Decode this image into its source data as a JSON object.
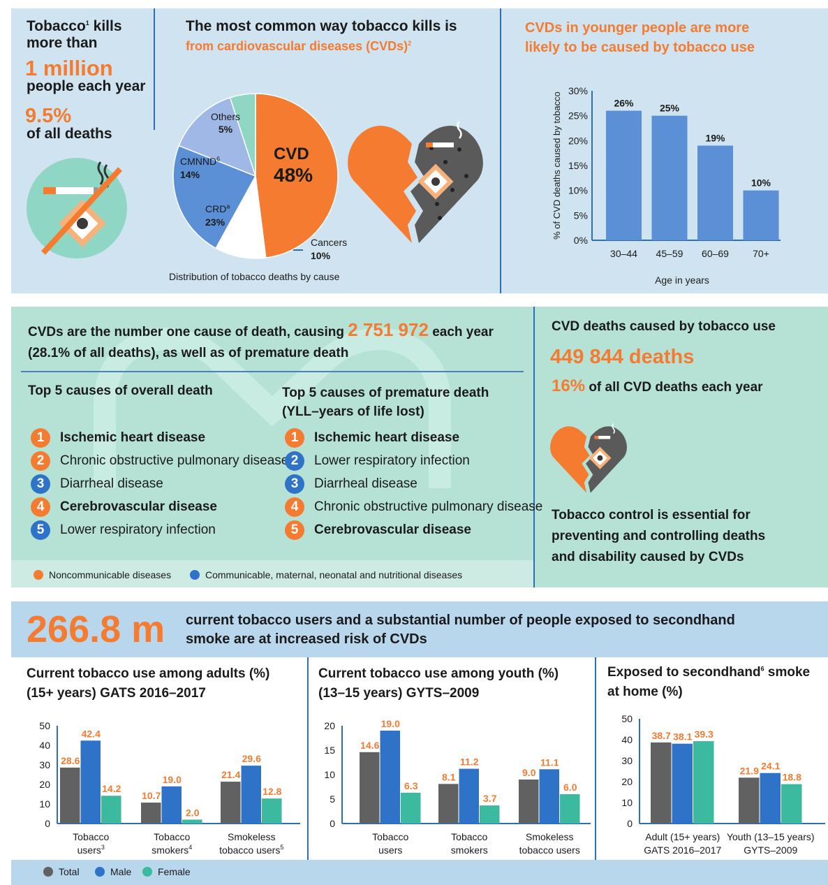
{
  "colors": {
    "orange": "#f47b2f",
    "blue": "#2f73c8",
    "barBlue": "#5b8fd6",
    "grey": "#616161",
    "teal": "#3bbaa0"
  },
  "sec1": {
    "kills_line1": "Tobacco",
    "kills_sup": "1",
    "kills_line1b": " kills",
    "kills_line2": "more than",
    "kills_big": "1 million",
    "kills_line3": "people each year",
    "pct": "9.5%",
    "pct_label": "of all deaths",
    "common_title": "The most common way tobacco kills is",
    "common_sub": "from cardiovascular diseases (CVDs)",
    "common_sub_sup": "2",
    "pie_caption": "Distribution of tobacco deaths by cause",
    "young_title1": "CVDs in younger people are more",
    "young_title2": "likely to be caused by tobacco use"
  },
  "pie": {
    "slices": [
      {
        "name": "CVD",
        "value": 48,
        "label": "48%",
        "color": "#f47b2f"
      },
      {
        "name": "Cancers",
        "value": 10,
        "label": "10%",
        "color": "#ffffff"
      },
      {
        "name": "CRD",
        "sup": "a",
        "value": 23,
        "label": "23%",
        "color": "#5b8fd6"
      },
      {
        "name": "CMNND",
        "sup": "6",
        "value": 14,
        "label": "14%",
        "color": "#9fb8e6"
      },
      {
        "name": "Others",
        "value": 5,
        "label": "5%",
        "color": "#8fd6c4"
      }
    ]
  },
  "sec2": {
    "headline1": "CVDs are the number one cause of death, causing",
    "headline_num": "2 751 972",
    "headline2": "each year",
    "headline3": "(28.1% of all deaths), as well as of premature death",
    "overall_title": "Top 5 causes of overall death",
    "premature_title1": "Top 5 causes of premature death",
    "premature_title2": "(YLL–years of life lost)",
    "overall": [
      {
        "rank": "1",
        "label": "Ischemic heart disease",
        "type": "ncd",
        "bold": true
      },
      {
        "rank": "2",
        "label": "Chronic obstructive pulmonary disease",
        "type": "ncd",
        "bold": false
      },
      {
        "rank": "3",
        "label": "Diarrheal disease",
        "type": "cd",
        "bold": false
      },
      {
        "rank": "4",
        "label": "Cerebrovascular disease",
        "type": "ncd",
        "bold": true
      },
      {
        "rank": "5",
        "label": "Lower respiratory infection",
        "type": "cd",
        "bold": false
      }
    ],
    "premature": [
      {
        "rank": "1",
        "label": "Ischemic heart disease",
        "type": "ncd",
        "bold": true
      },
      {
        "rank": "2",
        "label": "Lower respiratory infection",
        "type": "cd",
        "bold": false
      },
      {
        "rank": "3",
        "label": "Diarrheal disease",
        "type": "cd",
        "bold": false
      },
      {
        "rank": "4",
        "label": "Chronic obstructive pulmonary disease",
        "type": "ncd",
        "bold": false
      },
      {
        "rank": "5",
        "label": "Cerebrovascular disease",
        "type": "ncd",
        "bold": true
      }
    ],
    "legend_ncd": "Noncommunicable diseases",
    "legend_cd": "Communicable, maternal, neonatal and nutritional diseases",
    "right_title": "CVD deaths caused by tobacco use",
    "right_deaths": "449 844 deaths",
    "right_pct": "16%",
    "right_pct_label": "of all CVD deaths each year",
    "control1": "Tobacco control is essential for",
    "control2": "preventing and controlling deaths",
    "control3": "and disability caused by CVDs"
  },
  "sec3": {
    "big": "266.8 m",
    "head1": "current tobacco users and a substantial number of people exposed to secondhand",
    "head2": "smoke are at increased risk of CVDs",
    "c1_title1": "Current tobacco use among adults (%)",
    "c1_title2": "(15+ years) GATS 2016–2017",
    "c2_title1": "Current tobacco use among youth (%)",
    "c2_title2": "(13–15 years) GYTS–2009",
    "c3_title1": "Exposed to secondhand",
    "c3_title_sup": "6",
    "c3_title1b": " smoke",
    "c3_title2": "at home (%)",
    "legend_total": "Total",
    "legend_male": "Male",
    "legend_female": "Female"
  },
  "chart_data": [
    {
      "type": "bar",
      "xlabel": "Age in years",
      "ylabel": "% of CVD deaths caused by tobacco",
      "categories": [
        "30–44",
        "45–59",
        "60–69",
        "70+"
      ],
      "values": [
        26,
        25,
        19,
        10
      ],
      "value_labels": [
        "26%",
        "25%",
        "19%",
        "10%"
      ],
      "ylim": [
        0,
        30
      ],
      "yticks": [
        "0%",
        "5%",
        "10%",
        "15%",
        "20%",
        "25%",
        "30%"
      ]
    },
    {
      "type": "bar",
      "title": "Current tobacco use among adults (%) (15+ years) GATS 2016–2017",
      "categories": [
        [
          "Tobacco",
          "users",
          "3"
        ],
        [
          "Tobacco",
          "smokers",
          "4"
        ],
        [
          "Smokeless",
          "tobacco users",
          "5"
        ]
      ],
      "series": [
        {
          "name": "Total",
          "values": [
            28.6,
            10.7,
            21.4
          ]
        },
        {
          "name": "Male",
          "values": [
            42.4,
            19.0,
            29.6
          ]
        },
        {
          "name": "Female",
          "values": [
            14.2,
            2.0,
            12.8
          ]
        }
      ],
      "ylim": [
        0,
        50
      ],
      "yticks": [
        "0",
        "10",
        "20",
        "30",
        "40",
        "50"
      ]
    },
    {
      "type": "bar",
      "title": "Current tobacco use among youth (%) (13–15 years) GYTS–2009",
      "categories": [
        [
          "Tobacco",
          "users",
          ""
        ],
        [
          "Tobacco",
          "smokers",
          ""
        ],
        [
          "Smokeless",
          "tobacco users",
          ""
        ]
      ],
      "series": [
        {
          "name": "Total",
          "values": [
            14.6,
            8.1,
            9.0
          ]
        },
        {
          "name": "Male",
          "values": [
            19.0,
            11.2,
            11.1
          ]
        },
        {
          "name": "Female",
          "values": [
            6.3,
            3.7,
            6.0
          ]
        }
      ],
      "ylim": [
        0,
        20
      ],
      "yticks": [
        "0",
        "5",
        "10",
        "15",
        "20"
      ]
    },
    {
      "type": "bar",
      "title": "Exposed to secondhand smoke at home (%)",
      "categories": [
        [
          "Adult (15+ years)",
          "GATS 2016–2017",
          ""
        ],
        [
          "Youth (13–15 years)",
          "GYTS–2009",
          ""
        ]
      ],
      "series": [
        {
          "name": "Total",
          "values": [
            38.7,
            21.9
          ]
        },
        {
          "name": "Male",
          "values": [
            38.1,
            24.1
          ]
        },
        {
          "name": "Female",
          "values": [
            39.3,
            18.8
          ]
        }
      ],
      "ylim": [
        0,
        50
      ],
      "yticks": [
        "0",
        "10",
        "20",
        "30",
        "40",
        "50"
      ]
    }
  ]
}
